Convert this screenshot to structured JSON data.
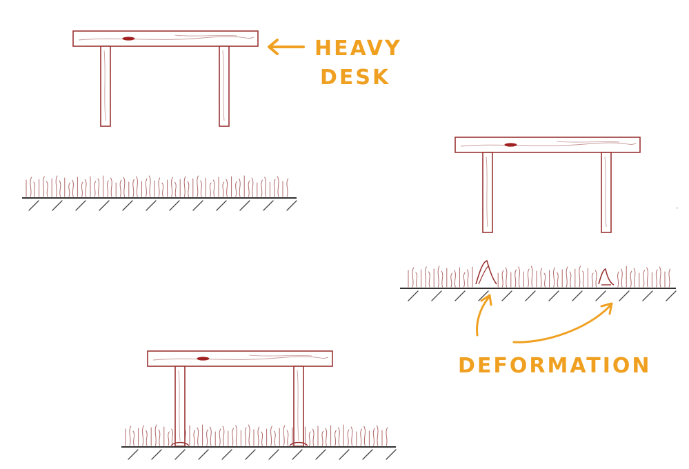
{
  "annotations": {
    "desk_label_line1": "HEAVY",
    "desk_label_line2": "DESK",
    "deformation_label": "DEFORMATION"
  },
  "colors": {
    "background": "#ffffff",
    "desk_stroke": "#9a3232",
    "wood_grain": "#c89a9a",
    "knot": "#a02020",
    "grass": "#b06a6a",
    "ground": "#2f2f2f",
    "hatch": "#444444",
    "annotation": "#f0a020"
  },
  "panels": [
    {
      "id": "desk-above-carpet",
      "desk_state": "raised"
    },
    {
      "id": "desk-on-carpet",
      "desk_state": "resting"
    },
    {
      "id": "desk-removed-deformation",
      "desk_state": "lifted",
      "dents": 2
    }
  ],
  "icons": [
    "arrow-left-icon",
    "arrow-up-icon"
  ]
}
